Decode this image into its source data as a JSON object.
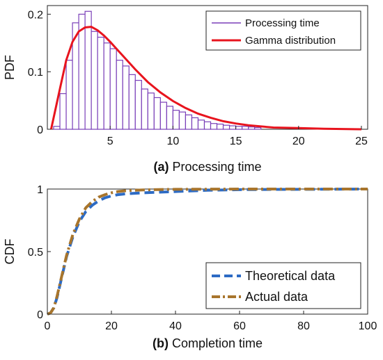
{
  "chart_data": [
    {
      "type": "bar",
      "caption_letter": "(a)",
      "caption_text": "Processing time",
      "ylabel": "PDF",
      "xlim": [
        0,
        25.5
      ],
      "ylim": [
        0,
        0.215
      ],
      "xticks": [
        5,
        10,
        15,
        20,
        25
      ],
      "yticks": [
        0,
        0.1,
        0.2
      ],
      "bin_width": 0.5,
      "histogram": {
        "name": "Processing time",
        "color": "#7a3fb8",
        "bin_left_edges": [
          0.5,
          1.0,
          1.5,
          2.0,
          2.5,
          3.0,
          3.5,
          4.0,
          4.5,
          5.0,
          5.5,
          6.0,
          6.5,
          7.0,
          7.5,
          8.0,
          8.5,
          9.0,
          9.5,
          10.0,
          10.5,
          11.0,
          11.5,
          12.0,
          12.5,
          13.0,
          13.5,
          14.0,
          14.5,
          15.0,
          15.5,
          16.0,
          16.5
        ],
        "values": [
          0.005,
          0.062,
          0.12,
          0.185,
          0.2,
          0.205,
          0.17,
          0.16,
          0.15,
          0.14,
          0.12,
          0.11,
          0.095,
          0.085,
          0.07,
          0.063,
          0.055,
          0.047,
          0.04,
          0.033,
          0.03,
          0.025,
          0.02,
          0.016,
          0.013,
          0.01,
          0.009,
          0.007,
          0.006,
          0.005,
          0.005,
          0.004,
          0.003
        ]
      },
      "curve": {
        "name": "Gamma distribution",
        "color": "#e8141e",
        "x": [
          0.3,
          1,
          1.5,
          2,
          2.5,
          3,
          3.5,
          4,
          4.5,
          5,
          5.5,
          6,
          7,
          8,
          9,
          10,
          11,
          12,
          13,
          14,
          15,
          16,
          17,
          18,
          20,
          22,
          25
        ],
        "y": [
          0.0,
          0.07,
          0.12,
          0.152,
          0.17,
          0.177,
          0.178,
          0.172,
          0.163,
          0.152,
          0.14,
          0.128,
          0.104,
          0.082,
          0.064,
          0.049,
          0.037,
          0.027,
          0.02,
          0.014,
          0.01,
          0.007,
          0.005,
          0.003,
          0.002,
          0.001,
          0.0
        ]
      },
      "legend_position": "top-right"
    },
    {
      "type": "line",
      "caption_letter": "(b)",
      "caption_text": "Completion time",
      "ylabel": "CDF",
      "xlim": [
        0,
        100
      ],
      "ylim": [
        0,
        1
      ],
      "xticks": [
        0,
        20,
        40,
        60,
        80,
        100
      ],
      "yticks": [
        0,
        0.5,
        1
      ],
      "series": [
        {
          "name": "Theoretical data",
          "color": "#2d6bc4",
          "style": "dashed",
          "x": [
            0,
            1,
            2,
            3,
            4,
            5,
            6,
            8,
            10,
            12,
            14,
            16,
            18,
            20,
            22,
            25,
            30,
            35,
            40,
            50,
            60,
            70,
            80,
            90,
            100
          ],
          "y": [
            0,
            0.01,
            0.05,
            0.13,
            0.24,
            0.35,
            0.46,
            0.62,
            0.74,
            0.82,
            0.87,
            0.905,
            0.93,
            0.945,
            0.955,
            0.963,
            0.97,
            0.975,
            0.98,
            0.99,
            0.995,
            0.997,
            0.998,
            0.999,
            1.0
          ]
        },
        {
          "name": "Actual data",
          "color": "#a8752c",
          "style": "dashdot",
          "x": [
            0,
            1,
            2,
            3,
            4,
            5,
            6,
            8,
            10,
            12,
            14,
            16,
            18,
            20,
            22,
            25,
            30,
            35,
            40,
            50,
            60,
            70,
            80,
            90,
            100
          ],
          "y": [
            0,
            0.01,
            0.05,
            0.14,
            0.25,
            0.36,
            0.47,
            0.64,
            0.76,
            0.85,
            0.9,
            0.935,
            0.955,
            0.97,
            0.98,
            0.988,
            0.993,
            0.996,
            0.998,
            0.999,
            1.0,
            1.0,
            1.0,
            1.0,
            1.0
          ]
        }
      ],
      "legend_position": "bottom-right"
    }
  ]
}
